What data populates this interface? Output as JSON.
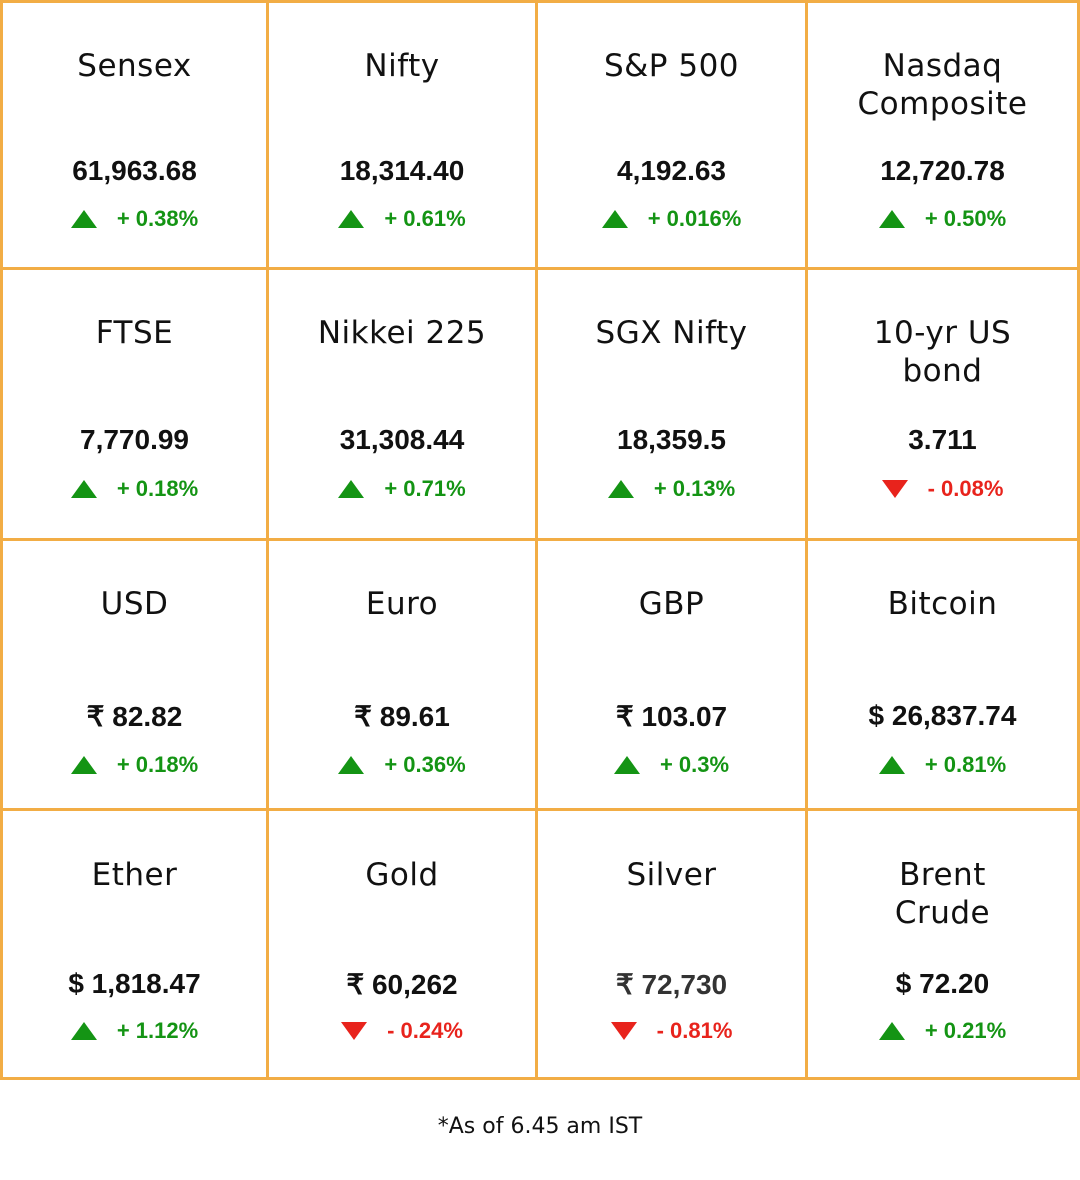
{
  "markets": [
    {
      "name": "Sensex",
      "value": "61,963.68",
      "change": "+ 0.38%",
      "direction": "up"
    },
    {
      "name": "Nifty",
      "value": "18,314.40",
      "change": "+ 0.61%",
      "direction": "up"
    },
    {
      "name": "S&P 500",
      "value": "4,192.63",
      "change": "+ 0.016%",
      "direction": "up"
    },
    {
      "name": "Nasdaq Composite",
      "value": "12,720.78",
      "change": "+ 0.50%",
      "direction": "up"
    },
    {
      "name": "FTSE",
      "value": "7,770.99",
      "change": "+ 0.18%",
      "direction": "up"
    },
    {
      "name": "Nikkei 225",
      "value": "31,308.44",
      "change": "+ 0.71%",
      "direction": "up"
    },
    {
      "name": "SGX Nifty",
      "value": "18,359.5",
      "change": "+ 0.13%",
      "direction": "up"
    },
    {
      "name": "10-yr US bond",
      "value": "3.711",
      "change": "- 0.08%",
      "direction": "down"
    },
    {
      "name": "USD",
      "value": "₹ 82.82",
      "change": "+ 0.18%",
      "direction": "up"
    },
    {
      "name": "Euro",
      "value": "₹ 89.61",
      "change": "+ 0.36%",
      "direction": "up"
    },
    {
      "name": "GBP",
      "value": "₹ 103.07",
      "change": "+ 0.3%",
      "direction": "up"
    },
    {
      "name": "Bitcoin",
      "value": "$ 26,837.74",
      "change": "+ 0.81%",
      "direction": "up"
    },
    {
      "name": "Ether",
      "value": "$ 1,818.47",
      "change": "+ 1.12%",
      "direction": "up"
    },
    {
      "name": "Gold",
      "value": "₹ 60,262",
      "change": "- 0.24%",
      "direction": "down"
    },
    {
      "name": "Silver",
      "value": "₹ 72,730",
      "change": "- 0.81%",
      "direction": "down"
    },
    {
      "name": "Brent Crude",
      "value": "$ 72.20",
      "change": "+ 0.21%",
      "direction": "up"
    }
  ],
  "footnote": "*As of 6.45 am IST",
  "colors": {
    "border": "#f2ad45",
    "up": "#149414",
    "down": "#e8231c",
    "text": "#111111"
  }
}
